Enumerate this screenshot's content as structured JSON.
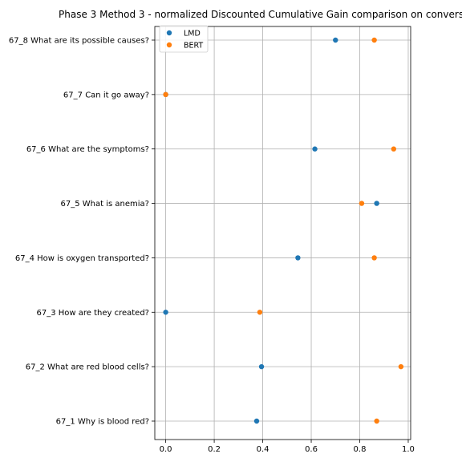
{
  "chart_data": {
    "type": "scatter",
    "title": "Phase 3 Method 3 - normalized Discounted Cumulative Gain comparison on convers",
    "xlabel": "",
    "ylabel": "",
    "xlim": [
      -0.045,
      1.01
    ],
    "xticks": [
      0.0,
      0.2,
      0.4,
      0.6,
      0.8,
      1.0
    ],
    "xtick_labels": [
      "0.0",
      "0.2",
      "0.4",
      "0.6",
      "0.8",
      "1.0"
    ],
    "grid": true,
    "legend_position": "top-left",
    "categories": [
      "67_1 Why is blood red?",
      "67_2 What are red blood cells?",
      "67_3 How are they created?",
      "67_4 How is oxygen transported?",
      "67_5 What is anemia?",
      "67_6 What are the symptoms?",
      "67_7 Can it go away?",
      "67_8 What are its possible causes?"
    ],
    "series": [
      {
        "name": "LMD",
        "color": "#1f77b4",
        "values": [
          0.375,
          0.395,
          0.0,
          0.545,
          0.87,
          0.615,
          0.0,
          0.7
        ]
      },
      {
        "name": "BERT",
        "color": "#ff7f0e",
        "values": [
          0.87,
          0.97,
          0.388,
          0.86,
          0.808,
          0.94,
          0.0,
          0.86
        ]
      }
    ]
  }
}
